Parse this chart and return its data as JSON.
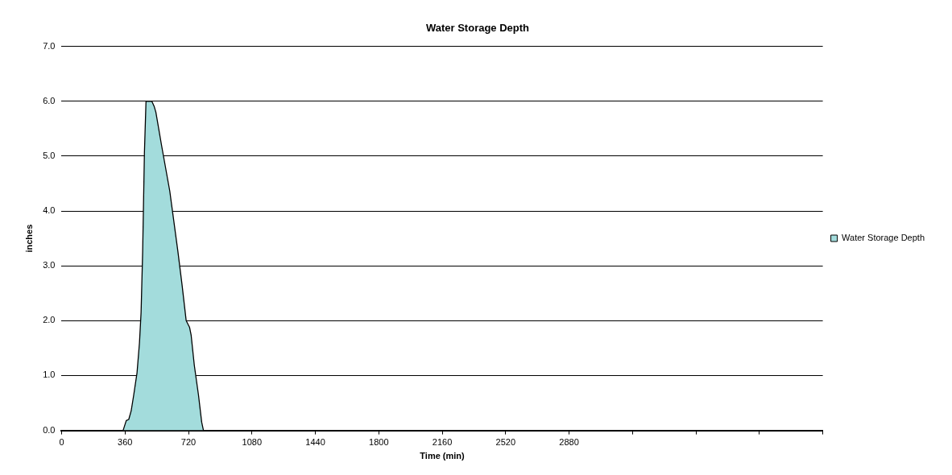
{
  "chart_data": {
    "type": "area",
    "title": "Water Storage Depth",
    "xlabel": "Time (min)",
    "ylabel": "inches",
    "xlim": [
      0,
      4320
    ],
    "xticks": [
      0,
      360,
      720,
      1080,
      1440,
      1800,
      2160,
      2520,
      2880,
      {
        "value": 3240,
        "label": null
      },
      {
        "value": 3600,
        "label": null
      },
      {
        "value": 3960,
        "label": null
      },
      {
        "value": 4320,
        "label": null
      }
    ],
    "ylim": [
      0,
      7
    ],
    "yticks": [
      {
        "value": 0,
        "label": "0.0"
      },
      {
        "value": 1,
        "label": "1.0"
      },
      {
        "value": 2,
        "label": "2.0"
      },
      {
        "value": 3,
        "label": "3.0"
      },
      {
        "value": 4,
        "label": "4.0"
      },
      {
        "value": 5,
        "label": "5.0"
      },
      {
        "value": 6,
        "label": "6.0"
      },
      {
        "value": 7,
        "label": "7.0"
      }
    ],
    "grid": "y",
    "legend": "right",
    "marker": "none",
    "x": [
      0,
      349,
      367,
      381,
      395,
      409,
      428,
      442,
      451,
      460,
      470,
      479,
      512,
      526,
      535,
      567,
      614,
      660,
      684,
      707,
      726,
      735,
      753,
      777,
      795,
      805,
      4320
    ],
    "series": [
      {
        "name": "Water Storage Depth",
        "color": "#a3dcdc",
        "values": [
          0,
          0,
          0.18,
          0.2,
          0.36,
          0.64,
          1.05,
          1.6,
          2.15,
          3.26,
          5.06,
          6.0,
          6.0,
          5.9,
          5.8,
          5.2,
          4.36,
          3.26,
          2.64,
          2.0,
          1.88,
          1.74,
          1.19,
          0.64,
          0.15,
          0,
          0
        ]
      }
    ]
  }
}
